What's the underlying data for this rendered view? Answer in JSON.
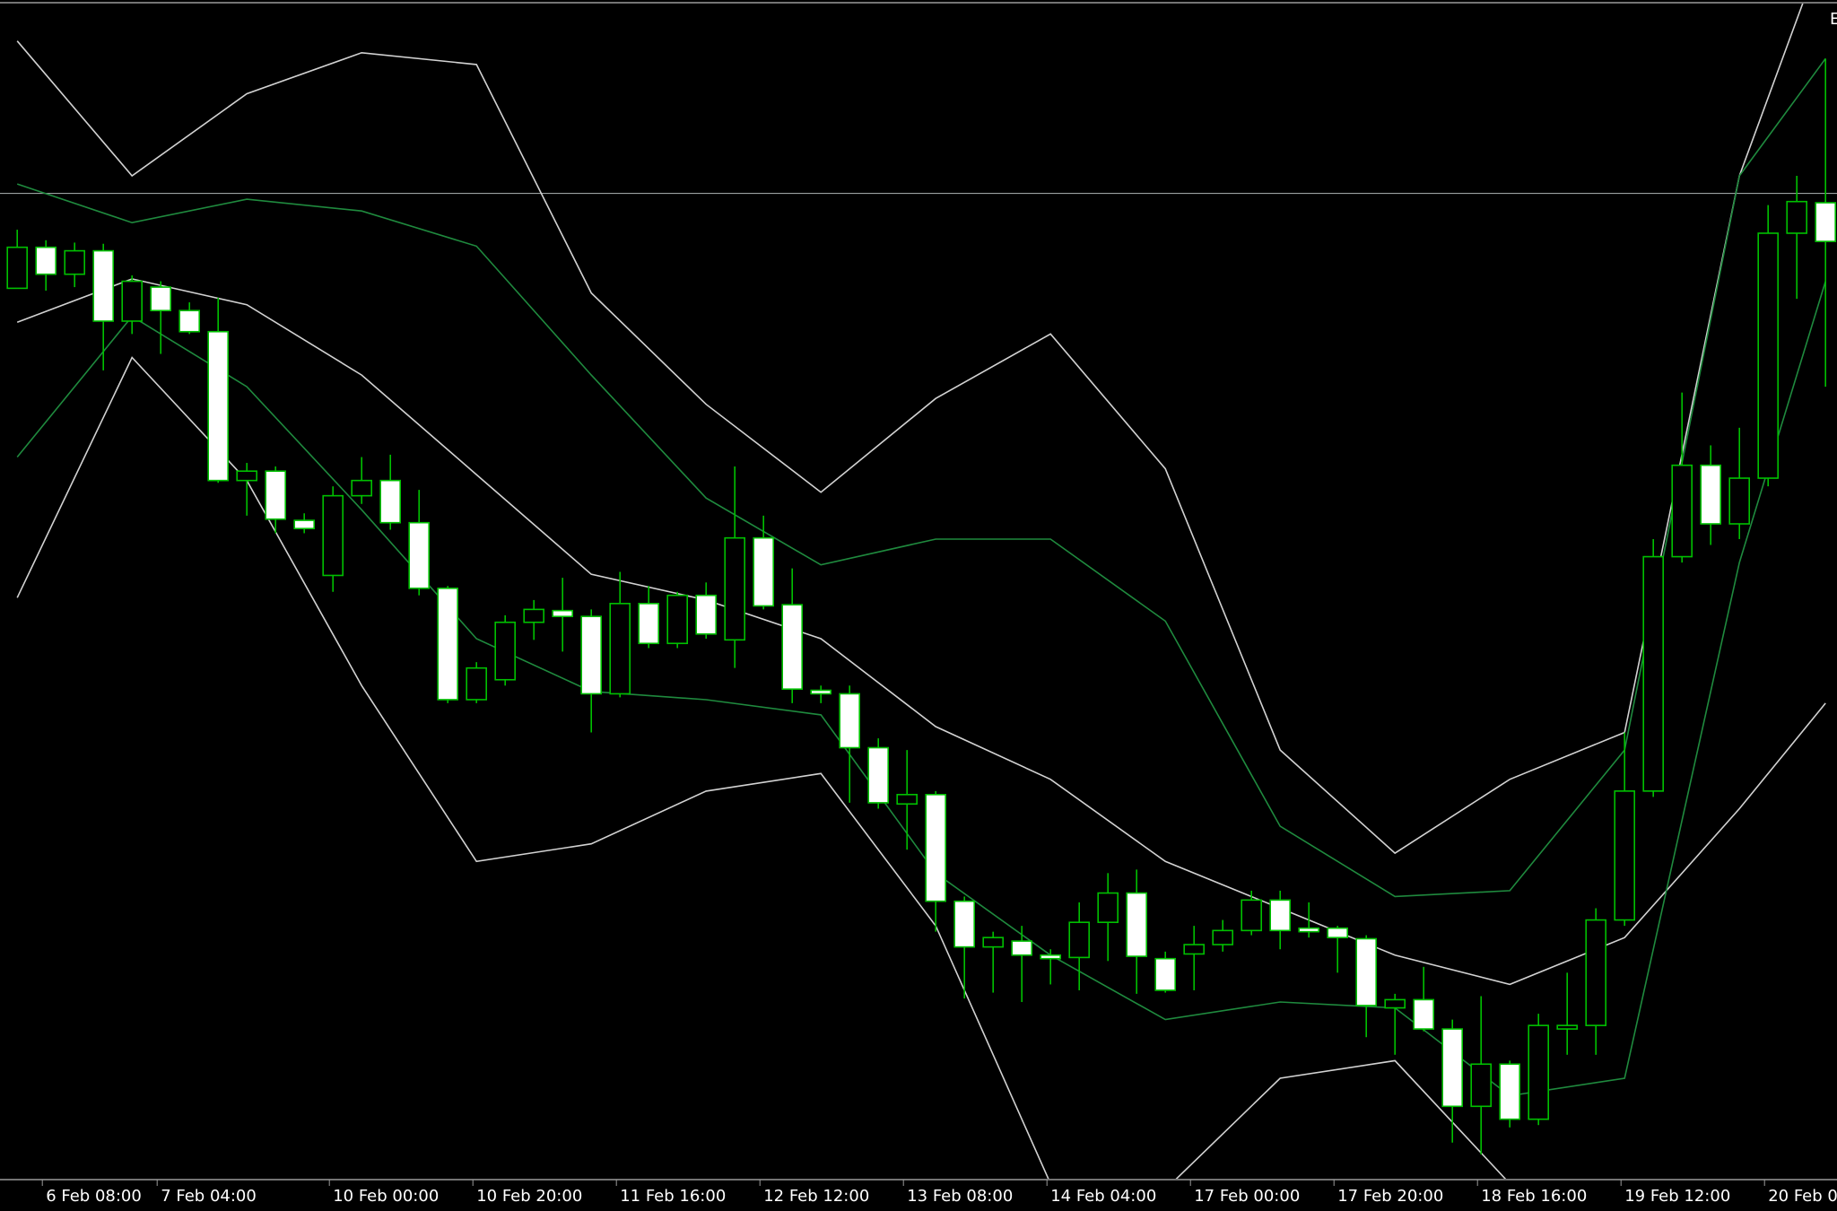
{
  "chart_data": {
    "type": "candlestick",
    "corner_label": "E",
    "xlim": [
      -0.6,
      63.4
    ],
    "ylim": [
      0,
      1005
    ],
    "xticks": [
      {
        "value": 1,
        "label": "6 Feb 08:00"
      },
      {
        "value": 5,
        "label": "7 Feb 04:00"
      },
      {
        "value": 11,
        "label": "10 Feb 00:00"
      },
      {
        "value": 16,
        "label": "10 Feb 20:00"
      },
      {
        "value": 21,
        "label": "11 Feb 16:00"
      },
      {
        "value": 26,
        "label": "12 Feb 12:00"
      },
      {
        "value": 31,
        "label": "13 Feb 08:00"
      },
      {
        "value": 36,
        "label": "14 Feb 04:00"
      },
      {
        "value": 41,
        "label": "17 Feb 00:00"
      },
      {
        "value": 46,
        "label": "17 Feb 20:00"
      },
      {
        "value": 51,
        "label": "18 Feb 16:00"
      },
      {
        "value": 56,
        "label": "19 Feb 12:00"
      },
      {
        "value": 61,
        "label": "20 Feb 0"
      }
    ],
    "bull_color": "#00c000",
    "bear_color": "#ffffff",
    "open": [
      759,
      794,
      771,
      791,
      731,
      760,
      740,
      722,
      595,
      603,
      561,
      514,
      582,
      595,
      559,
      503,
      408,
      425,
      474,
      484,
      479,
      413,
      490,
      456,
      497,
      459,
      546,
      489,
      416,
      413,
      367,
      319,
      327,
      236,
      197,
      202,
      190,
      188,
      218,
      243,
      187,
      191,
      199,
      211,
      237,
      213,
      213,
      204,
      145,
      152,
      127,
      61,
      97,
      50,
      127,
      130,
      220,
      330,
      530,
      608,
      558,
      597,
      806,
      832
    ],
    "high": [
      809,
      800,
      798,
      797,
      770,
      765,
      747,
      751,
      610,
      607,
      567,
      590,
      615,
      617,
      587,
      505,
      440,
      480,
      493,
      512,
      485,
      517,
      505,
      500,
      508,
      607,
      565,
      520,
      420,
      420,
      375,
      365,
      330,
      240,
      210,
      215,
      195,
      235,
      260,
      263,
      193,
      215,
      220,
      245,
      245,
      235,
      215,
      207,
      157,
      180,
      135,
      155,
      100,
      140,
      175,
      230,
      380,
      545,
      670,
      625,
      640,
      830,
      855,
      955
    ],
    "low": [
      759,
      757,
      760,
      689,
      720,
      703,
      720,
      593,
      565,
      550,
      550,
      500,
      575,
      553,
      497,
      405,
      405,
      420,
      459,
      449,
      380,
      410,
      452,
      452,
      460,
      435,
      485,
      405,
      405,
      320,
      315,
      280,
      210,
      153,
      158,
      150,
      165,
      160,
      185,
      157,
      158,
      160,
      193,
      207,
      195,
      205,
      175,
      120,
      105,
      125,
      30,
      20,
      43,
      45,
      105,
      105,
      215,
      325,
      525,
      540,
      545,
      590,
      750,
      675
    ],
    "close": [
      794,
      771,
      791,
      731,
      765,
      740,
      722,
      595,
      603,
      562,
      554,
      582,
      595,
      559,
      503,
      408,
      435,
      474,
      485,
      479,
      413,
      490,
      456,
      497,
      464,
      546,
      488,
      417,
      413,
      367,
      320,
      327,
      236,
      197,
      205,
      190,
      187,
      218,
      243,
      189,
      160,
      199,
      211,
      237,
      211,
      210,
      205,
      147,
      152,
      127,
      61,
      97,
      50,
      130,
      130,
      220,
      330,
      530,
      608,
      558,
      597,
      806,
      833,
      799
    ],
    "lines": [
      {
        "color": "#d2d2d2",
        "x": [
          0,
          4,
          8,
          12,
          16,
          20,
          24,
          28,
          32,
          36,
          40,
          44,
          48,
          52,
          56,
          60,
          63
        ],
        "values": [
          970,
          855,
          925,
          960,
          950,
          755,
          660,
          585,
          665,
          720,
          605,
          365,
          277,
          340,
          380,
          855,
          1055
        ]
      },
      {
        "color": "#d2d2d2",
        "x": [
          0,
          4,
          8,
          12,
          16,
          20,
          24,
          28,
          32,
          36,
          40,
          44,
          48,
          52,
          56,
          60,
          63
        ],
        "values": [
          730,
          767,
          745,
          685,
          600,
          515,
          493,
          460,
          385,
          340,
          270,
          230,
          190,
          165,
          205,
          315,
          405
        ]
      },
      {
        "color": "#d2d2d2",
        "x": [
          0,
          4,
          8,
          12,
          16,
          20,
          24,
          28,
          32,
          36,
          40,
          44,
          48,
          52,
          56,
          60,
          63
        ],
        "values": [
          495,
          700,
          595,
          420,
          270,
          285,
          330,
          345,
          215,
          -5,
          -10,
          85,
          100,
          -5,
          null,
          null,
          null
        ]
      },
      {
        "color": "#1f8a3e",
        "x": [
          0,
          4,
          8,
          12,
          16,
          20,
          24,
          28,
          32,
          36,
          40,
          44,
          48,
          52,
          56,
          60,
          63
        ],
        "values": [
          848,
          815,
          835,
          825,
          795,
          685,
          580,
          523,
          545,
          545,
          475,
          300,
          240,
          245,
          365,
          855,
          955
        ]
      },
      {
        "color": "#1f8a3e",
        "x": [
          0,
          4,
          8,
          12,
          16,
          20,
          24,
          28,
          32,
          36,
          40,
          44,
          48,
          52,
          56,
          60,
          63
        ],
        "values": [
          615,
          735,
          675,
          570,
          460,
          415,
          408,
          395,
          260,
          190,
          135,
          150,
          145,
          70,
          85,
          525,
          765
        ]
      }
    ],
    "hline": 840
  }
}
